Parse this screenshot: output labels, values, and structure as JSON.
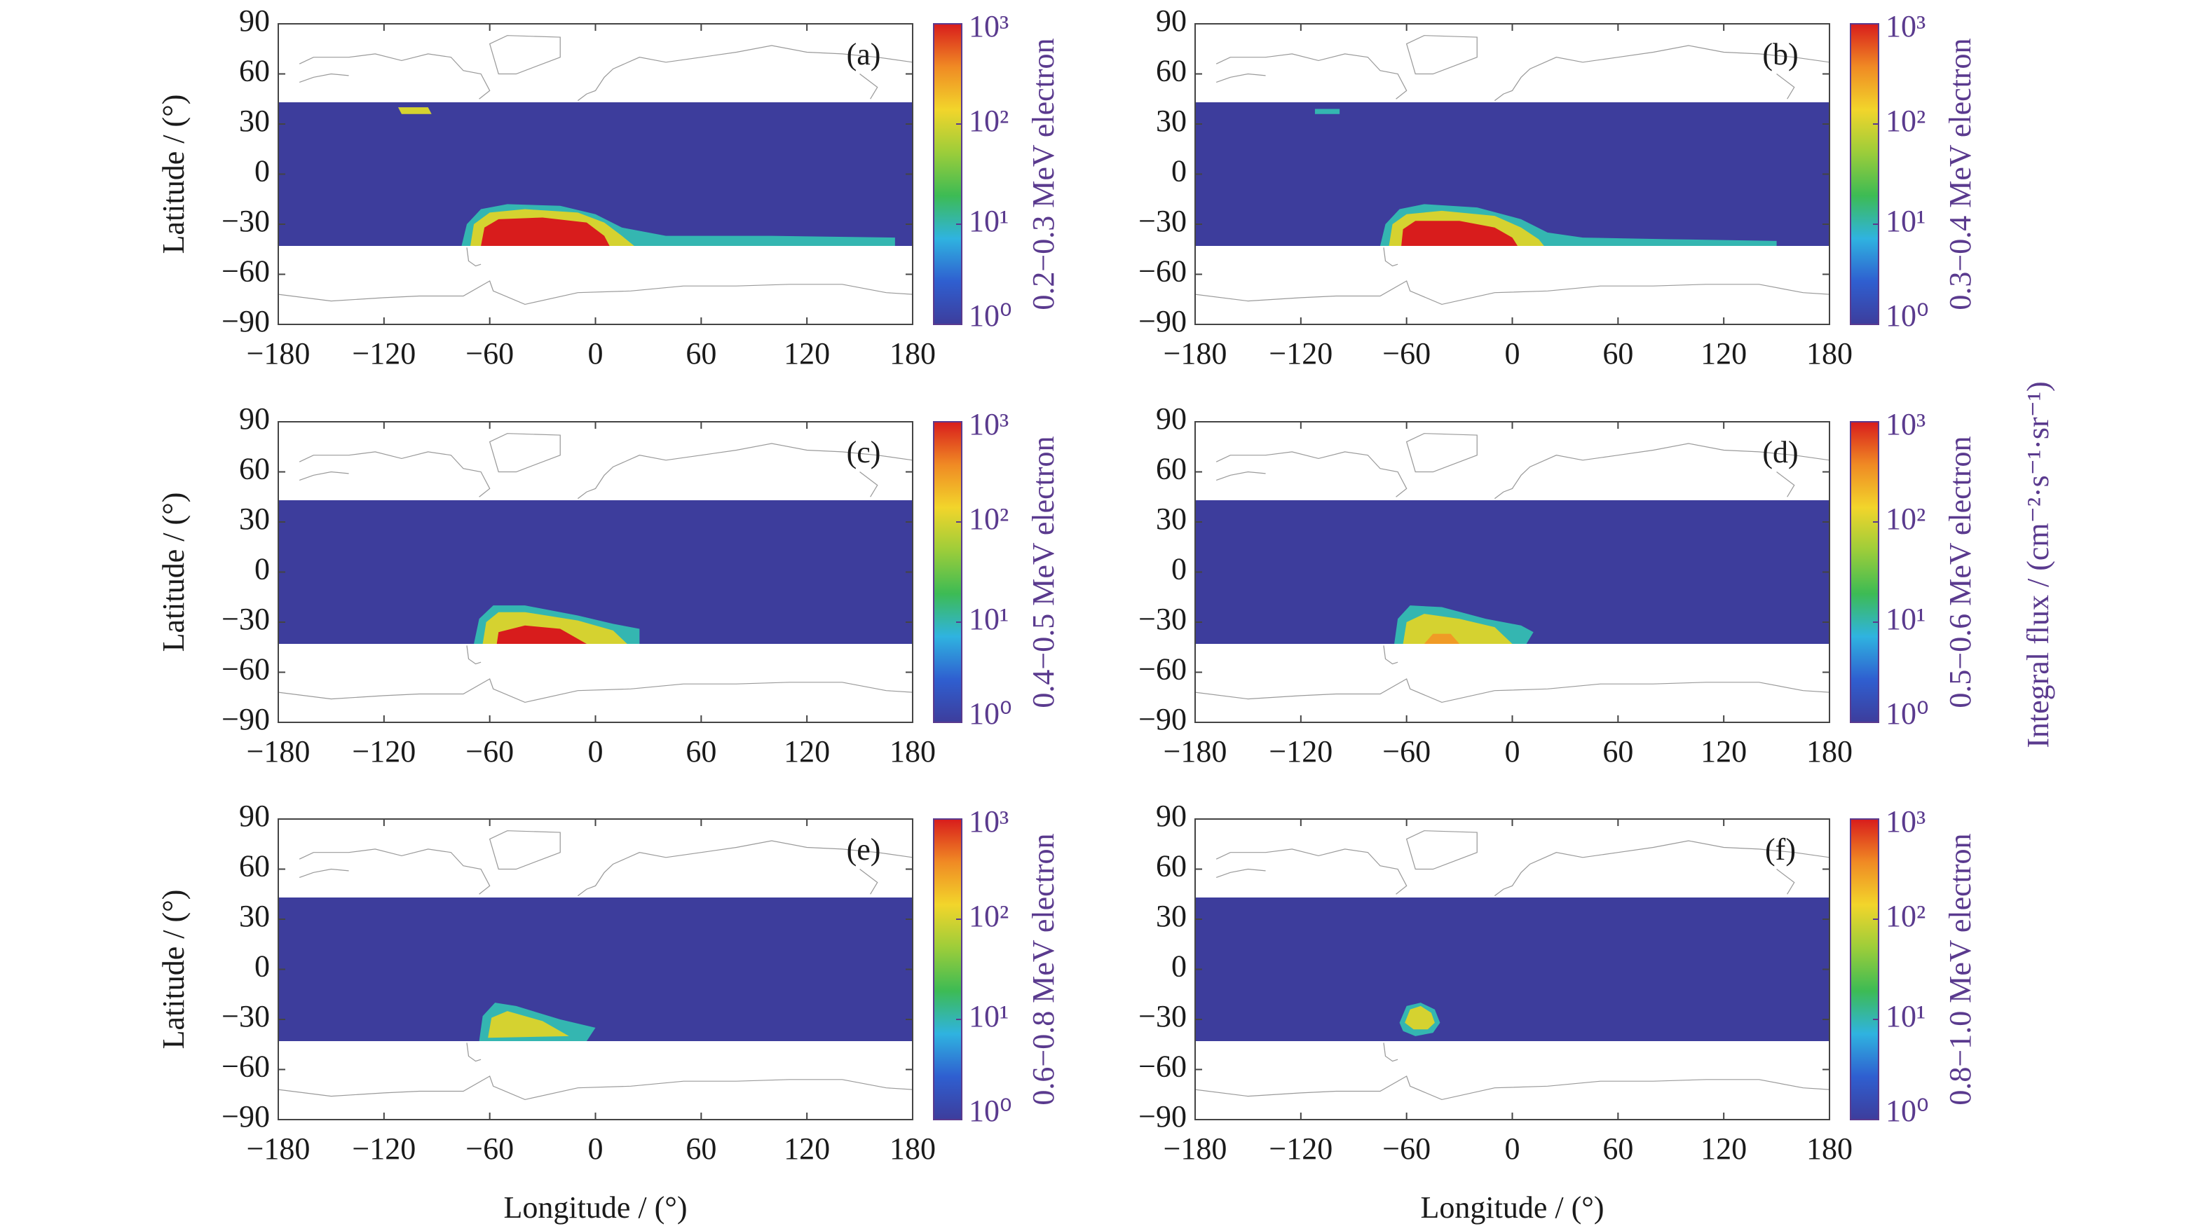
{
  "figure": {
    "colorbar_title": "Integral flux / (cm⁻²·s⁻¹·sr⁻¹)"
  },
  "chart_data": [
    {
      "type": "heatmap",
      "title": "(a)",
      "ylabel": "Latitude / (°)",
      "xlim": [
        -180,
        180
      ],
      "ylim": [
        -90,
        90
      ],
      "xticks": [
        {
          "value": -180,
          "label": "−180"
        },
        {
          "value": -120,
          "label": "−120"
        },
        {
          "value": -60,
          "label": "−60"
        },
        0,
        60,
        120,
        180
      ],
      "yticks": [
        90,
        60,
        30,
        0,
        {
          "value": -30,
          "label": "−30"
        },
        {
          "value": -60,
          "label": "−60"
        },
        {
          "value": -90,
          "label": "−90"
        }
      ],
      "colorbar": {
        "label": "0.2−0.3 MeV electron",
        "lim": [
          1,
          1000
        ],
        "log": true,
        "ticks": [
          {
            "value": 1,
            "label": "10⁰"
          },
          {
            "value": 10,
            "label": "10¹"
          },
          {
            "value": 100,
            "label": "10²"
          },
          {
            "value": 1000,
            "label": "10³"
          }
        ]
      },
      "colormap": [
        "#3d3d9c",
        "#2f5fd0",
        "#2fb3e0",
        "#3dbb54",
        "#9ccd3a",
        "#f2d52b",
        "#f08a24",
        "#d81c1c"
      ],
      "regions": [
        {
          "level": 1,
          "lon": [
            -180,
            180,
            180,
            -180
          ],
          "lat": [
            43,
            43,
            -43,
            -43
          ]
        },
        {
          "level": 100,
          "lon": [
            -112,
            -95,
            -93,
            -110
          ],
          "lat": [
            40,
            40,
            36,
            36
          ]
        },
        {
          "level": 10,
          "lon": [
            -76,
            -73,
            -65,
            -50,
            -20,
            0,
            15,
            40,
            100,
            170,
            170
          ],
          "lat": [
            -43,
            -30,
            -21,
            -18,
            -19,
            -24,
            -32,
            -37,
            -37,
            -38,
            -43
          ]
        },
        {
          "level": 100,
          "lon": [
            -71,
            -69,
            -60,
            -40,
            -10,
            5,
            15,
            22
          ],
          "lat": [
            -43,
            -30,
            -23,
            -21,
            -23,
            -29,
            -37,
            -43
          ]
        },
        {
          "level": 1000,
          "lon": [
            -65,
            -63,
            -55,
            -30,
            -5,
            5,
            8
          ],
          "lat": [
            -43,
            -32,
            -27,
            -26,
            -29,
            -37,
            -43
          ]
        }
      ]
    },
    {
      "type": "heatmap",
      "title": "(b)",
      "xlim": [
        -180,
        180
      ],
      "ylim": [
        -90,
        90
      ],
      "xticks": [
        {
          "value": -180,
          "label": "−180"
        },
        {
          "value": -120,
          "label": "−120"
        },
        {
          "value": -60,
          "label": "−60"
        },
        0,
        60,
        120,
        180
      ],
      "yticks": [
        90,
        60,
        30,
        0,
        {
          "value": -30,
          "label": "−30"
        },
        {
          "value": -60,
          "label": "−60"
        },
        {
          "value": -90,
          "label": "−90"
        }
      ],
      "colorbar": {
        "label": "0.3−0.4 MeV electron",
        "lim": [
          1,
          1000
        ],
        "log": true,
        "ticks": [
          {
            "value": 1,
            "label": "10⁰"
          },
          {
            "value": 10,
            "label": "10¹"
          },
          {
            "value": 100,
            "label": "10²"
          },
          {
            "value": 1000,
            "label": "10³"
          }
        ]
      },
      "colormap": [
        "#3d3d9c",
        "#2f5fd0",
        "#2fb3e0",
        "#3dbb54",
        "#9ccd3a",
        "#f2d52b",
        "#f08a24",
        "#d81c1c"
      ],
      "regions": [
        {
          "level": 1,
          "lon": [
            -180,
            180,
            180,
            -180
          ],
          "lat": [
            43,
            43,
            -43,
            -43
          ]
        },
        {
          "level": 10,
          "lon": [
            -112,
            -98,
            -98,
            -112
          ],
          "lat": [
            39,
            39,
            36,
            36
          ]
        },
        {
          "level": 10,
          "lon": [
            -75,
            -72,
            -64,
            -50,
            -20,
            5,
            20,
            40,
            90,
            150,
            150
          ],
          "lat": [
            -43,
            -30,
            -21,
            -18,
            -20,
            -27,
            -35,
            -38,
            -39,
            -40,
            -43
          ]
        },
        {
          "level": 100,
          "lon": [
            -70,
            -68,
            -60,
            -40,
            -10,
            5,
            15,
            18
          ],
          "lat": [
            -43,
            -30,
            -24,
            -22,
            -25,
            -32,
            -39,
            -43
          ]
        },
        {
          "level": 1000,
          "lon": [
            -63,
            -62,
            -55,
            -30,
            -10,
            0,
            3
          ],
          "lat": [
            -43,
            -33,
            -28,
            -28,
            -32,
            -38,
            -43
          ]
        }
      ]
    },
    {
      "type": "heatmap",
      "title": "(c)",
      "ylabel": "Latitude / (°)",
      "xlim": [
        -180,
        180
      ],
      "ylim": [
        -90,
        90
      ],
      "xticks": [
        {
          "value": -180,
          "label": "−180"
        },
        {
          "value": -120,
          "label": "−120"
        },
        {
          "value": -60,
          "label": "−60"
        },
        0,
        60,
        120,
        180
      ],
      "yticks": [
        90,
        60,
        30,
        0,
        {
          "value": -30,
          "label": "−30"
        },
        {
          "value": -60,
          "label": "−60"
        },
        {
          "value": -90,
          "label": "−90"
        }
      ],
      "colorbar": {
        "label": "0.4−0.5 MeV electron",
        "lim": [
          1,
          1000
        ],
        "log": true,
        "ticks": [
          {
            "value": 1,
            "label": "10⁰"
          },
          {
            "value": 10,
            "label": "10¹"
          },
          {
            "value": 100,
            "label": "10²"
          },
          {
            "value": 1000,
            "label": "10³"
          }
        ]
      },
      "colormap": [
        "#3d3d9c",
        "#2f5fd0",
        "#2fb3e0",
        "#3dbb54",
        "#9ccd3a",
        "#f2d52b",
        "#f08a24",
        "#d81c1c"
      ],
      "regions": [
        {
          "level": 1,
          "lon": [
            -180,
            180,
            180,
            -180
          ],
          "lat": [
            43,
            43,
            -43,
            -43
          ]
        },
        {
          "level": 10,
          "lon": [
            -69,
            -66,
            -58,
            -40,
            -10,
            10,
            25,
            25
          ],
          "lat": [
            -43,
            -28,
            -20,
            -20,
            -26,
            -31,
            -34,
            -43
          ]
        },
        {
          "level": 100,
          "lon": [
            -64,
            -62,
            -55,
            -40,
            -10,
            10,
            18
          ],
          "lat": [
            -43,
            -30,
            -24,
            -24,
            -29,
            -35,
            -43
          ]
        },
        {
          "level": 1000,
          "lon": [
            -56,
            -55,
            -40,
            -20,
            -5
          ],
          "lat": [
            -43,
            -36,
            -32,
            -34,
            -43
          ]
        }
      ]
    },
    {
      "type": "heatmap",
      "title": "(d)",
      "xlim": [
        -180,
        180
      ],
      "ylim": [
        -90,
        90
      ],
      "xticks": [
        {
          "value": -180,
          "label": "−180"
        },
        {
          "value": -120,
          "label": "−120"
        },
        {
          "value": -60,
          "label": "−60"
        },
        0,
        60,
        120,
        180
      ],
      "yticks": [
        90,
        60,
        30,
        0,
        {
          "value": -30,
          "label": "−30"
        },
        {
          "value": -60,
          "label": "−60"
        },
        {
          "value": -90,
          "label": "−90"
        }
      ],
      "colorbar": {
        "label": "0.5−0.6 MeV electron",
        "lim": [
          1,
          1000
        ],
        "log": true,
        "ticks": [
          {
            "value": 1,
            "label": "10⁰"
          },
          {
            "value": 10,
            "label": "10¹"
          },
          {
            "value": 100,
            "label": "10²"
          },
          {
            "value": 1000,
            "label": "10³"
          }
        ]
      },
      "colormap": [
        "#3d3d9c",
        "#2f5fd0",
        "#2fb3e0",
        "#3dbb54",
        "#9ccd3a",
        "#f2d52b",
        "#f08a24",
        "#d81c1c"
      ],
      "regions": [
        {
          "level": 1,
          "lon": [
            -180,
            180,
            180,
            -180
          ],
          "lat": [
            43,
            43,
            -43,
            -43
          ]
        },
        {
          "level": 10,
          "lon": [
            -67,
            -65,
            -58,
            -40,
            -15,
            5,
            12,
            8
          ],
          "lat": [
            -43,
            -28,
            -20,
            -21,
            -28,
            -32,
            -36,
            -43
          ]
        },
        {
          "level": 100,
          "lon": [
            -62,
            -60,
            -50,
            -30,
            -10,
            0
          ],
          "lat": [
            -43,
            -30,
            -25,
            -28,
            -33,
            -43
          ]
        },
        {
          "level": 300,
          "lon": [
            -50,
            -45,
            -35,
            -30
          ],
          "lat": [
            -43,
            -37,
            -37,
            -43
          ]
        }
      ]
    },
    {
      "type": "heatmap",
      "title": "(e)",
      "ylabel": "Latitude / (°)",
      "xlabel": "Longitude / (°)",
      "xlim": [
        -180,
        180
      ],
      "ylim": [
        -90,
        90
      ],
      "xticks": [
        {
          "value": -180,
          "label": "−180"
        },
        {
          "value": -120,
          "label": "−120"
        },
        {
          "value": -60,
          "label": "−60"
        },
        0,
        60,
        120,
        180
      ],
      "yticks": [
        90,
        60,
        30,
        0,
        {
          "value": -30,
          "label": "−30"
        },
        {
          "value": -60,
          "label": "−60"
        },
        {
          "value": -90,
          "label": "−90"
        }
      ],
      "colorbar": {
        "label": "0.6−0.8 MeV electron",
        "lim": [
          1,
          1000
        ],
        "log": true,
        "ticks": [
          {
            "value": 1,
            "label": "10⁰"
          },
          {
            "value": 10,
            "label": "10¹"
          },
          {
            "value": 100,
            "label": "10²"
          },
          {
            "value": 1000,
            "label": "10³"
          }
        ]
      },
      "colormap": [
        "#3d3d9c",
        "#2f5fd0",
        "#2fb3e0",
        "#3dbb54",
        "#9ccd3a",
        "#f2d52b",
        "#f08a24",
        "#d81c1c"
      ],
      "regions": [
        {
          "level": 1,
          "lon": [
            -180,
            180,
            180,
            -180
          ],
          "lat": [
            43,
            43,
            -43,
            -43
          ]
        },
        {
          "level": 10,
          "lon": [
            -66,
            -64,
            -57,
            -45,
            -20,
            0,
            -5
          ],
          "lat": [
            -43,
            -28,
            -20,
            -22,
            -30,
            -35,
            -43
          ]
        },
        {
          "level": 100,
          "lon": [
            -61,
            -59,
            -50,
            -30,
            -15
          ],
          "lat": [
            -41,
            -29,
            -25,
            -31,
            -40
          ]
        }
      ]
    },
    {
      "type": "heatmap",
      "title": "(f)",
      "xlabel": "Longitude / (°)",
      "xlim": [
        -180,
        180
      ],
      "ylim": [
        -90,
        90
      ],
      "xticks": [
        {
          "value": -180,
          "label": "−180"
        },
        {
          "value": -120,
          "label": "−120"
        },
        {
          "value": -60,
          "label": "−60"
        },
        0,
        60,
        120,
        180
      ],
      "yticks": [
        90,
        60,
        30,
        0,
        {
          "value": -30,
          "label": "−30"
        },
        {
          "value": -60,
          "label": "−60"
        },
        {
          "value": -90,
          "label": "−90"
        }
      ],
      "colorbar": {
        "label": "0.8−1.0 MeV electron",
        "lim": [
          1,
          1000
        ],
        "log": true,
        "ticks": [
          {
            "value": 1,
            "label": "10⁰"
          },
          {
            "value": 10,
            "label": "10¹"
          },
          {
            "value": 100,
            "label": "10²"
          },
          {
            "value": 1000,
            "label": "10³"
          }
        ]
      },
      "colormap": [
        "#3d3d9c",
        "#2f5fd0",
        "#2fb3e0",
        "#3dbb54",
        "#9ccd3a",
        "#f2d52b",
        "#f08a24",
        "#d81c1c"
      ],
      "regions": [
        {
          "level": 1,
          "lon": [
            -180,
            180,
            180,
            -180
          ],
          "lat": [
            43,
            43,
            -43,
            -43
          ]
        },
        {
          "level": 10,
          "lon": [
            -64,
            -60,
            -52,
            -44,
            -41,
            -45,
            -55,
            -62
          ],
          "lat": [
            -32,
            -22,
            -20,
            -24,
            -32,
            -38,
            -40,
            -37
          ]
        },
        {
          "level": 100,
          "lon": [
            -61,
            -58,
            -52,
            -46,
            -44,
            -48,
            -56
          ],
          "lat": [
            -32,
            -24,
            -22,
            -26,
            -32,
            -36,
            -36
          ]
        }
      ]
    }
  ]
}
